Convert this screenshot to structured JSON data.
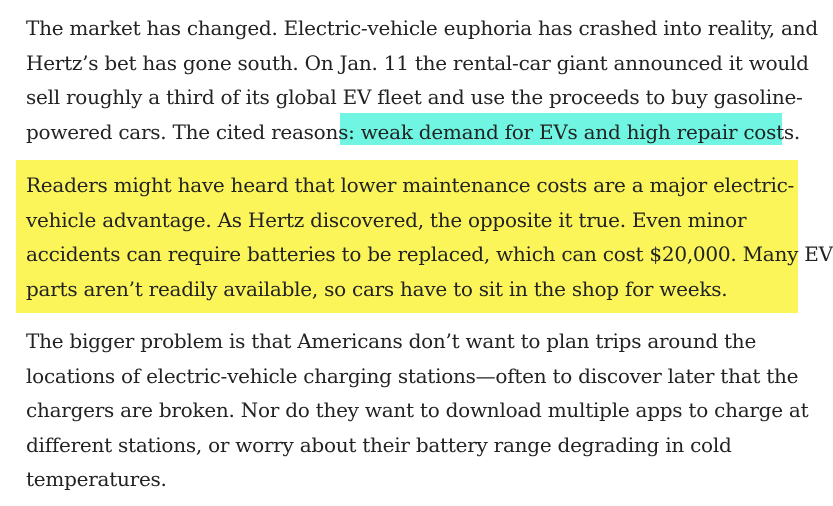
{
  "article": {
    "paragraphs": [
      {
        "lines": [
          "The market has changed. Electric-vehicle euphoria has crashed into reality, and",
          "Hertz’s bet has gone south. On Jan. 11 the rental-car giant announced it would",
          "sell roughly a third of its global EV fleet and use the proceeds to buy gasoline-",
          "powered cars. The cited reasons: "
        ],
        "highlighted_text": "weak demand for EVs and high repair costs.",
        "highlight_color": "#6ff5e2"
      },
      {
        "highlight_color": "#fbf55a",
        "lines": [
          "Readers might have heard that lower maintenance costs are a major electric-",
          "vehicle advantage. As Hertz discovered, the opposite it true. Even minor",
          "accidents can require batteries to be replaced, which can cost $20,000. Many EV",
          "parts aren’t readily available, so cars have to sit in the shop for weeks."
        ]
      },
      {
        "lines": [
          "The bigger problem is that Americans don’t want to plan trips around the",
          "locations of electric-vehicle charging stations—often to discover later that the",
          "chargers are broken. Nor do they want to download multiple apps to charge at",
          "different stations, or worry about their battery range degrading in cold",
          "temperatures."
        ]
      }
    ]
  }
}
